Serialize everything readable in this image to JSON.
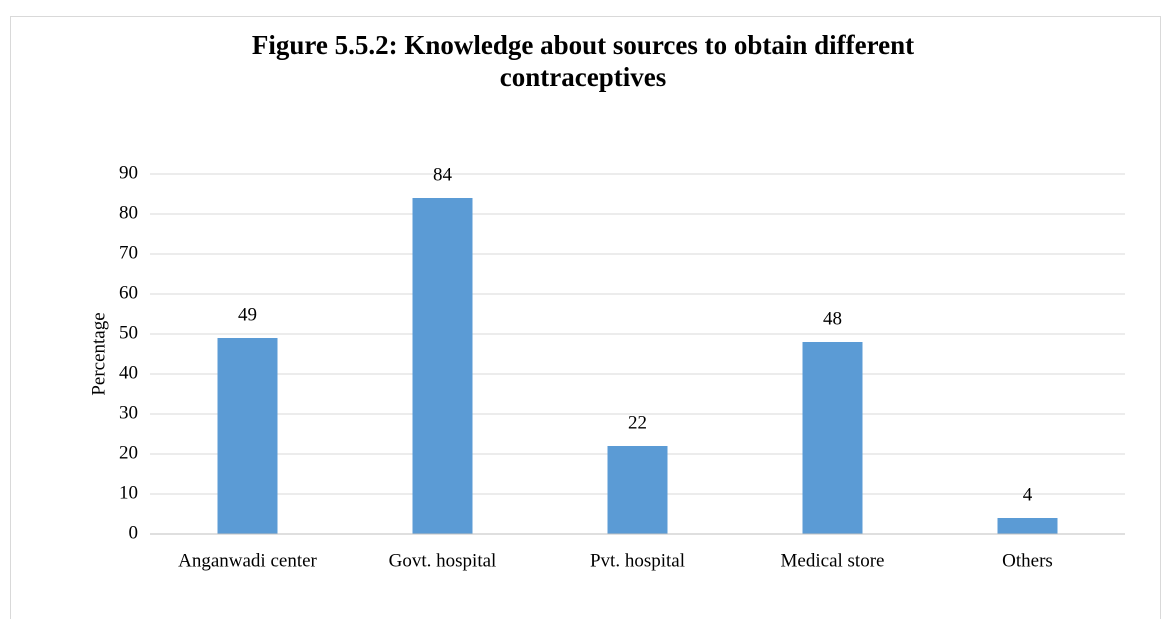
{
  "chart_data": {
    "type": "bar",
    "title": [
      "Figure 5.5.2: Knowledge about sources to obtain different",
      "contraceptives"
    ],
    "ylabel": "Percentage",
    "categories": [
      "Anganwadi center",
      "Govt. hospital",
      "Pvt. hospital",
      "Medical store",
      "Others"
    ],
    "values": [
      49,
      84,
      22,
      48,
      4
    ],
    "color": "#5b9bd5",
    "ylim": [
      0,
      90
    ],
    "yticks": [
      0,
      10,
      20,
      30,
      40,
      50,
      60,
      70,
      80,
      90
    ],
    "grid": true
  }
}
